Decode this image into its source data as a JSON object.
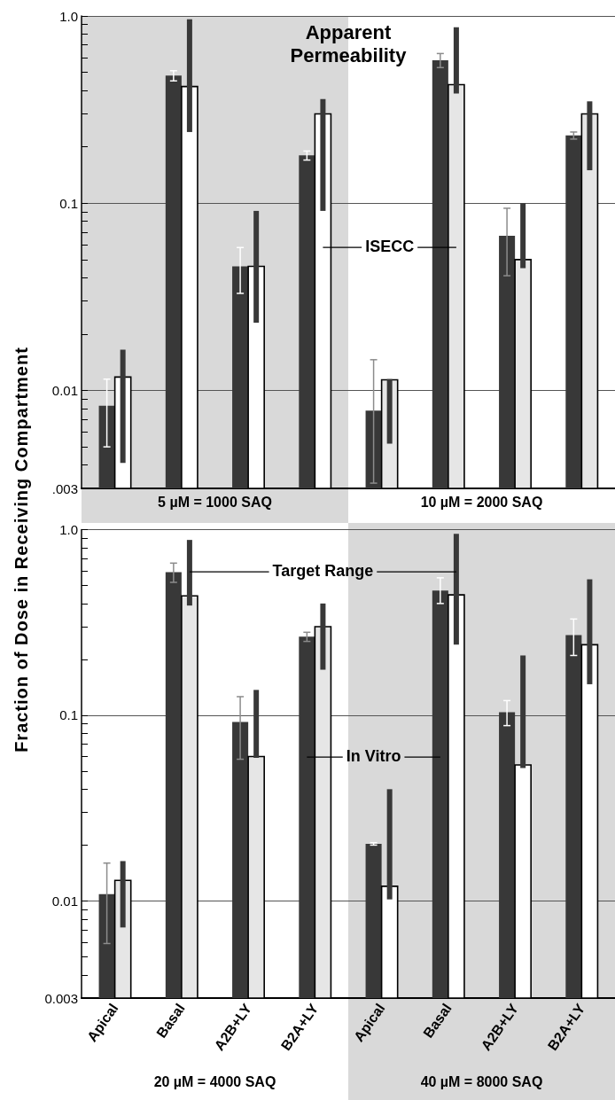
{
  "chart_data": [
    {
      "type": "bar",
      "title": "Apparent Permeability",
      "ylabel": "Fraction of Dose in Receiving Compartment",
      "annotations": [
        "5 µM = 1000 SAQ",
        "10 µM = 2000 SAQ"
      ],
      "categories": [
        null,
        null,
        null,
        null,
        null,
        null,
        null,
        null
      ],
      "log": true,
      "ylim": [
        0.003,
        1
      ],
      "yticks": [
        {
          "value": 0.003,
          "label": ".003"
        },
        {
          "value": 0.004,
          "label": null
        },
        {
          "value": 0.005,
          "label": null
        },
        {
          "value": 0.006,
          "label": null
        },
        {
          "value": 0.007,
          "label": null
        },
        {
          "value": 0.008,
          "label": null
        },
        {
          "value": 0.009,
          "label": null
        },
        0.01,
        {
          "value": 0.02,
          "label": null
        },
        {
          "value": 0.03,
          "label": null
        },
        {
          "value": 0.04,
          "label": null
        },
        {
          "value": 0.05,
          "label": null
        },
        {
          "value": 0.06,
          "label": null
        },
        {
          "value": 0.07,
          "label": null
        },
        {
          "value": 0.08,
          "label": null
        },
        {
          "value": 0.09,
          "label": null
        },
        0.1,
        {
          "value": 0.2,
          "label": null
        },
        {
          "value": 0.3,
          "label": null
        },
        {
          "value": 0.4,
          "label": null
        },
        {
          "value": 0.5,
          "label": null
        },
        {
          "value": 0.6,
          "label": null
        },
        {
          "value": 0.7,
          "label": null
        },
        {
          "value": 0.8,
          "label": null
        },
        {
          "value": 0.9,
          "label": null
        },
        {
          "value": 1,
          "label": "1.0"
        }
      ],
      "grid": "y",
      "tick_labels": "y",
      "series": [
        {
          "color": "#383838",
          "values": [
            0.0083,
            0.48,
            0.046,
            0.18,
            0.0078,
            0.58,
            0.067,
            0.23
          ],
          "errors": [
            [
              0.005,
              0.0115
            ],
            [
              0.45,
              0.51
            ],
            [
              0.033,
              0.058
            ],
            [
              0.17,
              0.19
            ],
            [
              0.0032,
              0.0146
            ],
            [
              0.53,
              0.63
            ],
            [
              0.041,
              0.094
            ],
            [
              0.22,
              0.24
            ]
          ]
        },
        {
          "name": "ISECC",
          "colors": [
            "#ffffff",
            "#ffffff",
            "#ffffff",
            "#ffffff",
            "#e6e6e6",
            "#e6e6e6",
            "#e6e6e6",
            "#e6e6e6"
          ],
          "values": [
            0.0118,
            0.42,
            0.046,
            0.3,
            0.0114,
            0.43,
            0.05,
            0.3
          ]
        },
        {
          "color": "#383838",
          "base": [
            0.0041,
            0.24,
            0.023,
            0.091,
            0.0052,
            0.385,
            0.045,
            0.15
          ],
          "values": [
            0.0124,
            0.72,
            0.068,
            0.269,
            0.0063,
            0.485,
            0.055,
            0.2
          ]
        }
      ]
    },
    {
      "type": "bar",
      "annotations": [
        "20 µM = 4000 SAQ",
        "40 µM = 8000 SAQ"
      ],
      "categories": [
        "Apical",
        "Basal",
        "A2B+LY",
        "B2A+LY",
        "Apical",
        "Basal",
        "A2B+LY",
        "B2A+LY"
      ],
      "log": true,
      "ylim": [
        0.003,
        1
      ],
      "yticks": [
        0.003,
        {
          "value": 0.004,
          "label": null
        },
        {
          "value": 0.005,
          "label": null
        },
        {
          "value": 0.006,
          "label": null
        },
        {
          "value": 0.007,
          "label": null
        },
        {
          "value": 0.008,
          "label": null
        },
        {
          "value": 0.009,
          "label": null
        },
        0.01,
        {
          "value": 0.02,
          "label": null
        },
        {
          "value": 0.03,
          "label": null
        },
        {
          "value": 0.04,
          "label": null
        },
        {
          "value": 0.05,
          "label": null
        },
        {
          "value": 0.06,
          "label": null
        },
        {
          "value": 0.07,
          "label": null
        },
        {
          "value": 0.08,
          "label": null
        },
        {
          "value": 0.09,
          "label": null
        },
        0.1,
        {
          "value": 0.2,
          "label": null
        },
        {
          "value": 0.3,
          "label": null
        },
        {
          "value": 0.4,
          "label": null
        },
        {
          "value": 0.5,
          "label": null
        },
        {
          "value": 0.6,
          "label": null
        },
        {
          "value": 0.7,
          "label": null
        },
        {
          "value": 0.8,
          "label": null
        },
        {
          "value": 0.9,
          "label": null
        },
        {
          "value": 1,
          "label": "1.0"
        }
      ],
      "grid": "y",
      "series": [
        {
          "name": "In Vitro",
          "color": "#383838",
          "values": [
            0.0109,
            0.59,
            0.092,
            0.265,
            0.0203,
            0.47,
            0.104,
            0.27
          ],
          "errors": [
            [
              0.0059,
              0.016
            ],
            [
              0.52,
              0.66
            ],
            [
              0.058,
              0.126
            ],
            [
              0.25,
              0.28
            ],
            [
              0.02,
              0.0206
            ],
            [
              0.4,
              0.55
            ],
            [
              0.088,
              0.12
            ],
            [
              0.21,
              0.33
            ]
          ]
        },
        {
          "colors": [
            "#e6e6e6",
            "#e6e6e6",
            "#e6e6e6",
            "#e6e6e6",
            "#ffffff",
            "#ffffff",
            "#ffffff",
            "#ffffff"
          ],
          "values": [
            0.0129,
            0.44,
            0.06,
            0.3,
            0.012,
            0.445,
            0.054,
            0.24
          ]
        },
        {
          "name": "Target Range",
          "color": "#383838",
          "base": [
            0.0072,
            0.39,
            0.059,
            0.176,
            0.0102,
            0.24,
            0.052,
            0.147
          ],
          "values": [
            0.0092,
            0.49,
            0.078,
            0.224,
            0.0298,
            0.71,
            0.158,
            0.393
          ]
        }
      ]
    }
  ]
}
